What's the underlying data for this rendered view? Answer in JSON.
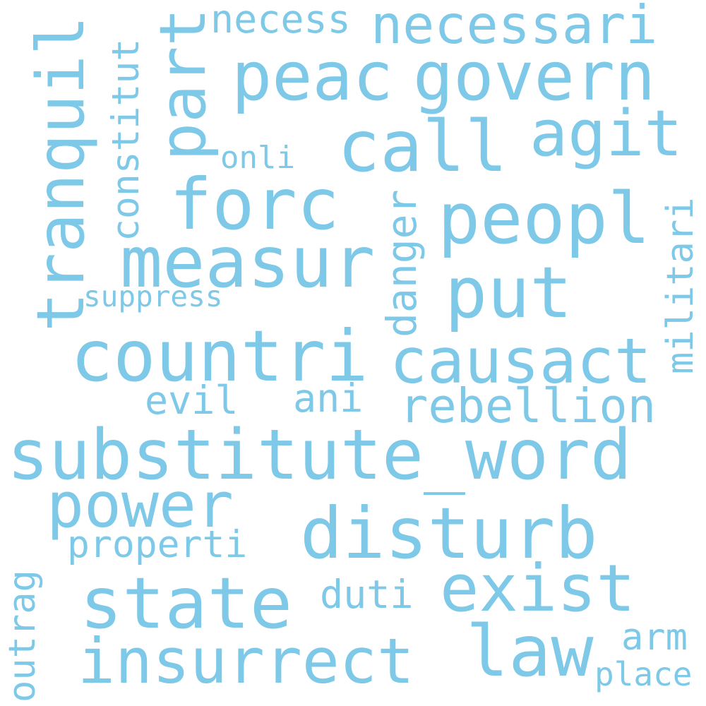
{
  "word_color": "#7ec8e8",
  "background": "#ffffff",
  "words": {
    "substitute_word": "substitute_word",
    "govern": "govern",
    "necessari": "necessari",
    "peac": "peac",
    "agit": "agit",
    "call": "call",
    "part": "part",
    "tranquil": "tranquil",
    "forc": "forc",
    "peopl": "peopl",
    "measur": "measur",
    "put": "put",
    "countri": "countri",
    "causact": "causact",
    "rebellion": "rebellion",
    "power": "power",
    "disturb": "disturb",
    "state": "state",
    "exist": "exist",
    "insurrect": "insurrect",
    "law": "law",
    "constitut": "constitut",
    "necess": "necess",
    "onli": "onli",
    "danger": "danger",
    "militari": "militari",
    "suppress": "suppress",
    "evil": "evil",
    "ani": "ani",
    "properti": "properti",
    "duti": "duti",
    "outrag": "outrag",
    "arm": "arm",
    "place": "place"
  }
}
